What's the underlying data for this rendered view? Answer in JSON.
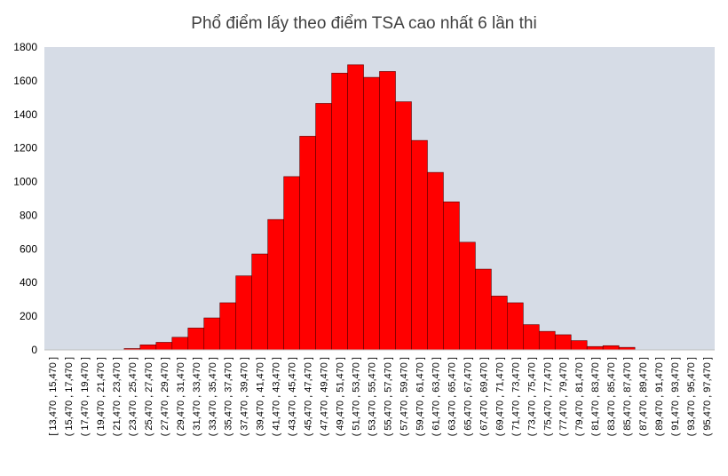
{
  "chart_data": {
    "type": "bar",
    "title": "Phổ điểm lấy theo điểm TSA cao nhất 6 lần thi",
    "xlabel": "",
    "ylabel": "",
    "ylim": [
      0,
      1800
    ],
    "yticks": [
      "0",
      "200",
      "400",
      "600",
      "800",
      "1000",
      "1200",
      "1400",
      "1600",
      "1800"
    ],
    "grid": false,
    "categories": [
      "[ 13,470 , 15,470 ]",
      "( 15,470 , 17,470 ]",
      "( 17,470 , 19,470 ]",
      "( 19,470 , 21,470 ]",
      "( 21,470 , 23,470 ]",
      "( 23,470 , 25,470 ]",
      "( 25,470 , 27,470 ]",
      "( 27,470 , 29,470 ]",
      "( 29,470 , 31,470 ]",
      "( 31,470 , 33,470 ]",
      "( 33,470 , 35,470 ]",
      "( 35,470 , 37,470 ]",
      "( 37,470 , 39,470 ]",
      "( 39,470 , 41,470 ]",
      "( 41,470 , 43,470 ]",
      "( 43,470 , 45,470 ]",
      "( 45,470 , 47,470 ]",
      "( 47,470 , 49,470 ]",
      "( 49,470 , 51,470 ]",
      "( 51,470 , 53,470 ]",
      "( 53,470 , 55,470 ]",
      "( 55,470 , 57,470 ]",
      "( 57,470 , 59,470 ]",
      "( 59,470 , 61,470 ]",
      "( 61,470 , 63,470 ]",
      "( 63,470 , 65,470 ]",
      "( 65,470 , 67,470 ]",
      "( 67,470 , 69,470 ]",
      "( 69,470 , 71,470 ]",
      "( 71,470 , 73,470 ]",
      "( 73,470 , 75,470 ]",
      "( 75,470 , 77,470 ]",
      "( 77,470 , 79,470 ]",
      "( 79,470 , 81,470 ]",
      "( 81,470 , 83,470 ]",
      "( 83,470 , 85,470 ]",
      "( 85,470 , 87,470 ]",
      "( 87,470 , 89,470 ]",
      "( 89,470 , 91,470 ]",
      "( 91,470 , 93,470 ]",
      "( 93,470 , 95,470 ]",
      "( 95,470 , 97,470 ]"
    ],
    "values": [
      0,
      0,
      0,
      0,
      0,
      8,
      30,
      45,
      75,
      130,
      190,
      280,
      440,
      570,
      775,
      1030,
      1270,
      1465,
      1645,
      1695,
      1620,
      1655,
      1475,
      1245,
      1055,
      880,
      640,
      480,
      320,
      280,
      150,
      110,
      90,
      55,
      20,
      25,
      15,
      0,
      0,
      0,
      0,
      0
    ],
    "colors": {
      "bar": "#ff0000",
      "bar_stroke": "#5a0000",
      "plot_background": "#d6dce6",
      "title": "#404040",
      "tick_label": "#000000"
    }
  }
}
